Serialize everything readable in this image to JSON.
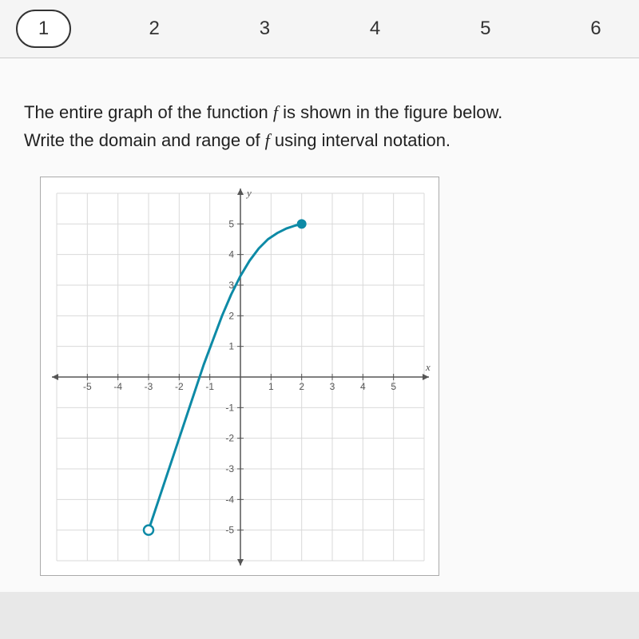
{
  "tabs": {
    "items": [
      "1",
      "2",
      "3",
      "4",
      "5",
      "6"
    ],
    "active_index": 0,
    "active_border": "#333333",
    "inactive_bg": "transparent"
  },
  "prompt": {
    "line1_a": "The entire graph of the function ",
    "line1_f": "f",
    "line1_b": " is shown in the figure below.",
    "line2_a": "Write the domain and range of ",
    "line2_f": "f",
    "line2_b": " using interval notation."
  },
  "chart": {
    "type": "line",
    "xlim": [
      -6,
      6
    ],
    "ylim": [
      -6,
      6
    ],
    "xtick_step": 1,
    "ytick_step": 1,
    "x_tick_labels": [
      "-5",
      "-4",
      "-3",
      "-2",
      "-1",
      "1",
      "2",
      "3",
      "4",
      "5"
    ],
    "y_tick_labels": [
      "-5",
      "-4",
      "-3",
      "-2",
      "-1",
      "1",
      "2",
      "3",
      "4",
      "5"
    ],
    "x_axis_label": "x",
    "y_axis_label": "y",
    "grid_color": "#d9d9d9",
    "axis_color": "#555555",
    "background_color": "#ffffff",
    "curve": {
      "color": "#0d8aa6",
      "width": 3,
      "points": [
        [
          -3,
          -5
        ],
        [
          -2.7,
          -4.1
        ],
        [
          -2.4,
          -3.2
        ],
        [
          -2.1,
          -2.3
        ],
        [
          -1.8,
          -1.4
        ],
        [
          -1.5,
          -0.5
        ],
        [
          -1.2,
          0.4
        ],
        [
          -0.9,
          1.2
        ],
        [
          -0.6,
          2.0
        ],
        [
          -0.3,
          2.7
        ],
        [
          0,
          3.3
        ],
        [
          0.3,
          3.8
        ],
        [
          0.6,
          4.2
        ],
        [
          0.9,
          4.5
        ],
        [
          1.2,
          4.7
        ],
        [
          1.5,
          4.85
        ],
        [
          1.8,
          4.95
        ],
        [
          2,
          5
        ]
      ],
      "start_point": {
        "x": -3,
        "y": -5,
        "style": "open",
        "radius": 6
      },
      "end_point": {
        "x": 2,
        "y": 5,
        "style": "closed",
        "radius": 6
      }
    },
    "tick_font_size": 12
  }
}
